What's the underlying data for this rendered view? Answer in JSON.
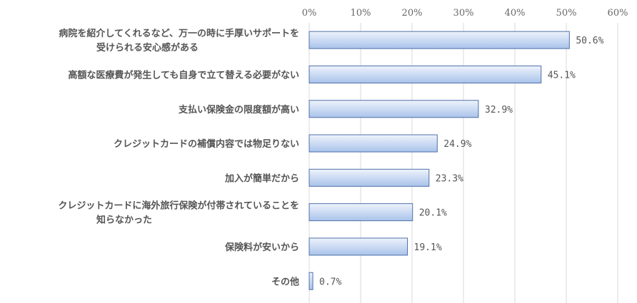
{
  "chart_data": {
    "type": "bar",
    "orientation": "horizontal",
    "categories": [
      [
        "病院を紹介してくれるなど、万一の時に手厚いサポートを",
        "受けられる安心感がある"
      ],
      [
        "高額な医療費が発生しても自身で立て替える必要がない"
      ],
      [
        "支払い保険金の限度額が高い"
      ],
      [
        "クレジットカードの補償内容では物足りない"
      ],
      [
        "加入が簡単だから"
      ],
      [
        "クレジットカードに海外旅行保険が付帯されていることを",
        "知らなかった"
      ],
      [
        "保険料が安いから"
      ],
      [
        "その他"
      ]
    ],
    "values": [
      50.6,
      45.1,
      32.9,
      24.9,
      23.3,
      20.1,
      19.1,
      0.7
    ],
    "value_labels": [
      "50.6%",
      "45.1%",
      "32.9%",
      "24.9%",
      "23.3%",
      "20.1%",
      "19.1%",
      "0.7%"
    ],
    "x_ticks": [
      0,
      10,
      20,
      30,
      40,
      50,
      60
    ],
    "x_tick_labels": [
      "0%",
      "10%",
      "20%",
      "30%",
      "40%",
      "50%",
      "60%"
    ],
    "xlim": [
      0,
      60
    ],
    "axis_position": "top",
    "grid": true,
    "legend": false,
    "title": "",
    "xlabel": "",
    "ylabel": ""
  },
  "colors": {
    "bar_top": "#eef3fc",
    "bar_bottom": "#a9c3ea",
    "bar_stroke": "#4f6fa8",
    "grid": "#d9d9d9"
  }
}
